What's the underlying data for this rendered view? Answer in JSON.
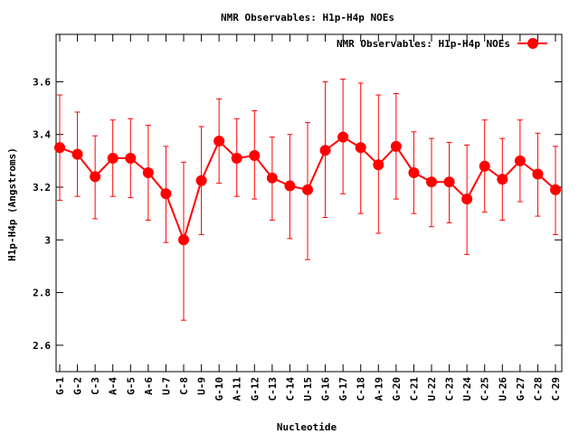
{
  "chart_data": {
    "type": "line",
    "title": "NMR Observables: H1p-H4p NOEs",
    "xlabel": "Nucleotide",
    "ylabel": "H1p-H4p (Angstroms)",
    "ylim": [
      2.5,
      3.78
    ],
    "yticks": [
      2.6,
      2.8,
      3,
      3.2,
      3.4,
      3.6
    ],
    "ytick_labels": [
      "2.6",
      "2.8",
      "3",
      "3.2",
      "3.4",
      "3.6"
    ],
    "grid": false,
    "legend_position": "top-right",
    "color": "#ff0000",
    "categories": [
      "G-1",
      "G-2",
      "C-3",
      "A-4",
      "G-5",
      "A-6",
      "U-7",
      "C-8",
      "U-9",
      "G-10",
      "A-11",
      "G-12",
      "C-13",
      "C-14",
      "U-15",
      "G-16",
      "G-17",
      "C-18",
      "A-19",
      "G-20",
      "C-21",
      "U-22",
      "C-23",
      "U-24",
      "C-25",
      "U-26",
      "G-27",
      "C-28",
      "C-29"
    ],
    "series": [
      {
        "name": "NMR Observables: H1p-H4p NOEs",
        "values": [
          3.35,
          3.325,
          3.24,
          3.31,
          3.31,
          3.255,
          3.175,
          3.0,
          3.225,
          3.375,
          3.31,
          3.32,
          3.235,
          3.205,
          3.19,
          3.34,
          3.39,
          3.35,
          3.285,
          3.355,
          3.255,
          3.22,
          3.22,
          3.155,
          3.28,
          3.23,
          3.3,
          3.25,
          3.19
        ],
        "err_low": [
          3.15,
          3.165,
          3.08,
          3.165,
          3.16,
          3.075,
          2.99,
          2.695,
          3.02,
          3.215,
          3.165,
          3.155,
          3.075,
          3.005,
          2.925,
          3.085,
          3.175,
          3.1,
          3.025,
          3.155,
          3.1,
          3.05,
          3.065,
          2.945,
          3.105,
          3.075,
          3.145,
          3.09,
          3.02
        ],
        "err_high": [
          3.55,
          3.485,
          3.395,
          3.455,
          3.46,
          3.435,
          3.355,
          3.295,
          3.43,
          3.535,
          3.46,
          3.49,
          3.39,
          3.4,
          3.445,
          3.6,
          3.61,
          3.595,
          3.55,
          3.555,
          3.41,
          3.385,
          3.37,
          3.36,
          3.455,
          3.385,
          3.455,
          3.405,
          3.355
        ]
      }
    ]
  }
}
